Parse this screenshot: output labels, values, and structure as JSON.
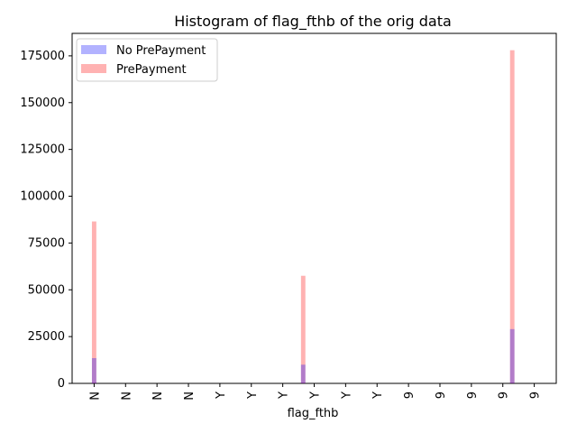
{
  "chart_data": {
    "type": "bar",
    "title": "Histogram of flag_fthb of the orig data",
    "xlabel": "flag_fthb",
    "ylabel": "",
    "ylim": [
      0,
      187000
    ],
    "xlim": [
      0,
      14
    ],
    "x_tick_labels": [
      "N",
      "N",
      "N",
      "N",
      "Y",
      "Y",
      "Y",
      "Y",
      "Y",
      "Y",
      "9",
      "9",
      "9",
      "9",
      "9"
    ],
    "y_ticks": [
      0,
      25000,
      50000,
      75000,
      100000,
      125000,
      150000,
      175000
    ],
    "y_tick_labels": [
      "0",
      "25000",
      "50000",
      "75000",
      "100000",
      "125000",
      "150000",
      "175000"
    ],
    "bar_width": 0.14,
    "legend_position": "upper-left",
    "grid": false,
    "series": [
      {
        "name": "PrePayment",
        "color": "#ff0000",
        "alpha": 0.3,
        "bins": [
          {
            "x": 0.0,
            "value": 86500
          },
          {
            "x": 6.65,
            "value": 57500
          },
          {
            "x": 13.3,
            "value": 178000
          }
        ]
      },
      {
        "name": "No PrePayment",
        "color": "#0000ff",
        "alpha": 0.3,
        "bins": [
          {
            "x": 0.0,
            "value": 13500
          },
          {
            "x": 6.65,
            "value": 10000
          },
          {
            "x": 13.3,
            "value": 29000
          }
        ]
      }
    ]
  }
}
